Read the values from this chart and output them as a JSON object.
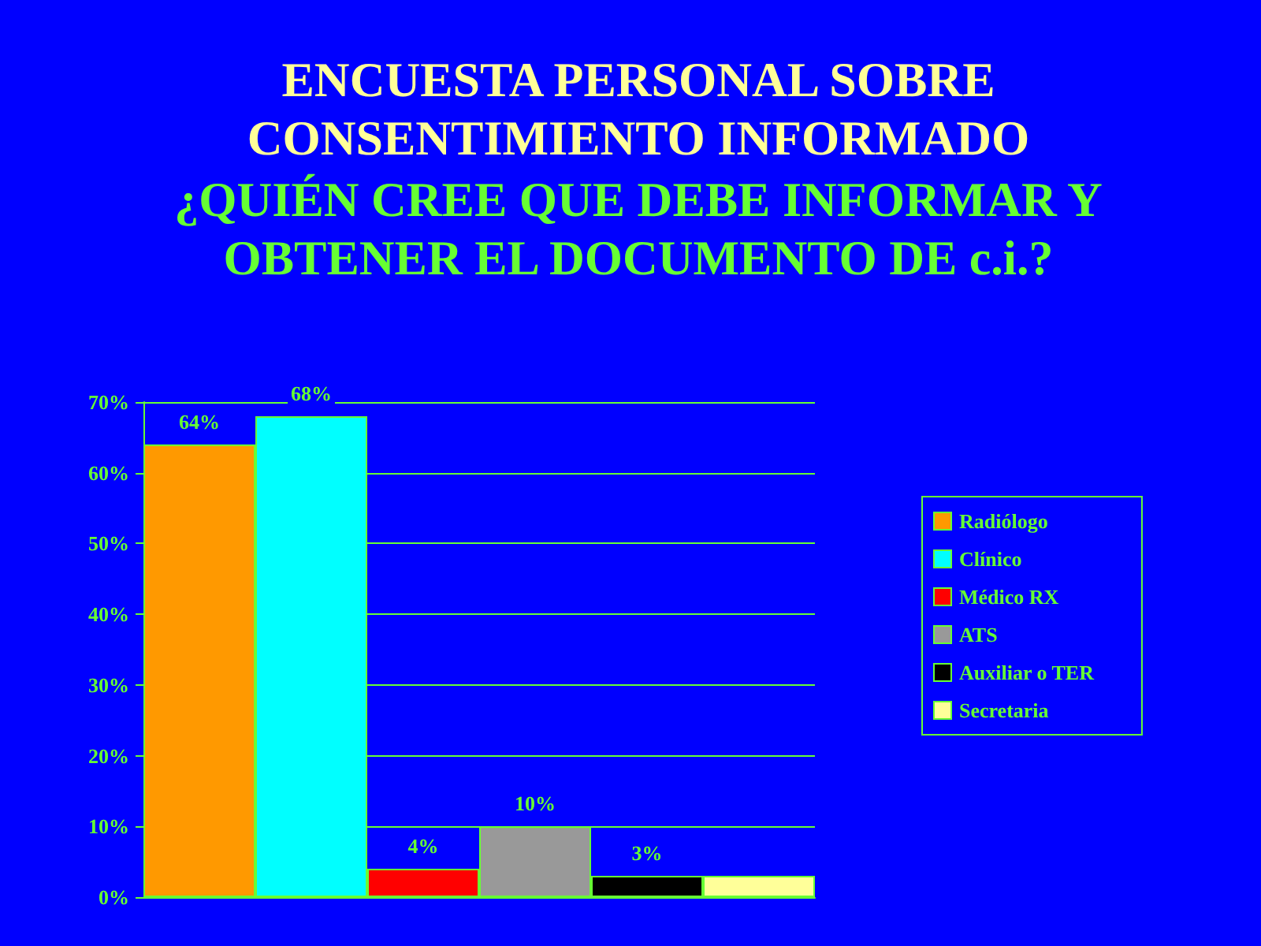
{
  "chart_data": {
    "type": "bar",
    "title": "ENCUESTA PERSONAL SOBRE\nCONSENTIMIENTO INFORMADO",
    "subtitle": "¿QUIÉN CREE QUE DEBE INFORMAR Y\nOBTENER EL DOCUMENTO DE c.i.?",
    "categories": [
      null
    ],
    "series": [
      {
        "name": "Radiólogo",
        "color": "#ff9900",
        "values": [
          64
        ],
        "value_labels": [
          "64%"
        ]
      },
      {
        "name": "Clínico",
        "color": "#00ffff",
        "values": [
          68
        ],
        "value_labels": [
          "68%"
        ]
      },
      {
        "name": "Médico RX",
        "color": "#ff0000",
        "values": [
          4
        ],
        "value_labels": [
          "4%"
        ]
      },
      {
        "name": "ATS",
        "color": "#999999",
        "values": [
          10
        ],
        "value_labels": [
          "10%"
        ]
      },
      {
        "name": "Auxiliar o TER",
        "color": "#000000",
        "values": [
          3
        ],
        "value_labels": [
          "3%"
        ]
      },
      {
        "name": "Secretaria",
        "color": "#ffff99",
        "values": [
          3
        ],
        "value_labels": [
          null
        ]
      }
    ],
    "ylim": [
      0,
      70
    ],
    "yticks": [
      {
        "value": 0,
        "label": "0%"
      },
      {
        "value": 10,
        "label": "10%"
      },
      {
        "value": 20,
        "label": "20%"
      },
      {
        "value": 30,
        "label": "30%"
      },
      {
        "value": 40,
        "label": "40%"
      },
      {
        "value": 50,
        "label": "50%"
      },
      {
        "value": 60,
        "label": "60%"
      },
      {
        "value": 70,
        "label": "70%"
      }
    ],
    "grid": "y",
    "legend": "right"
  }
}
